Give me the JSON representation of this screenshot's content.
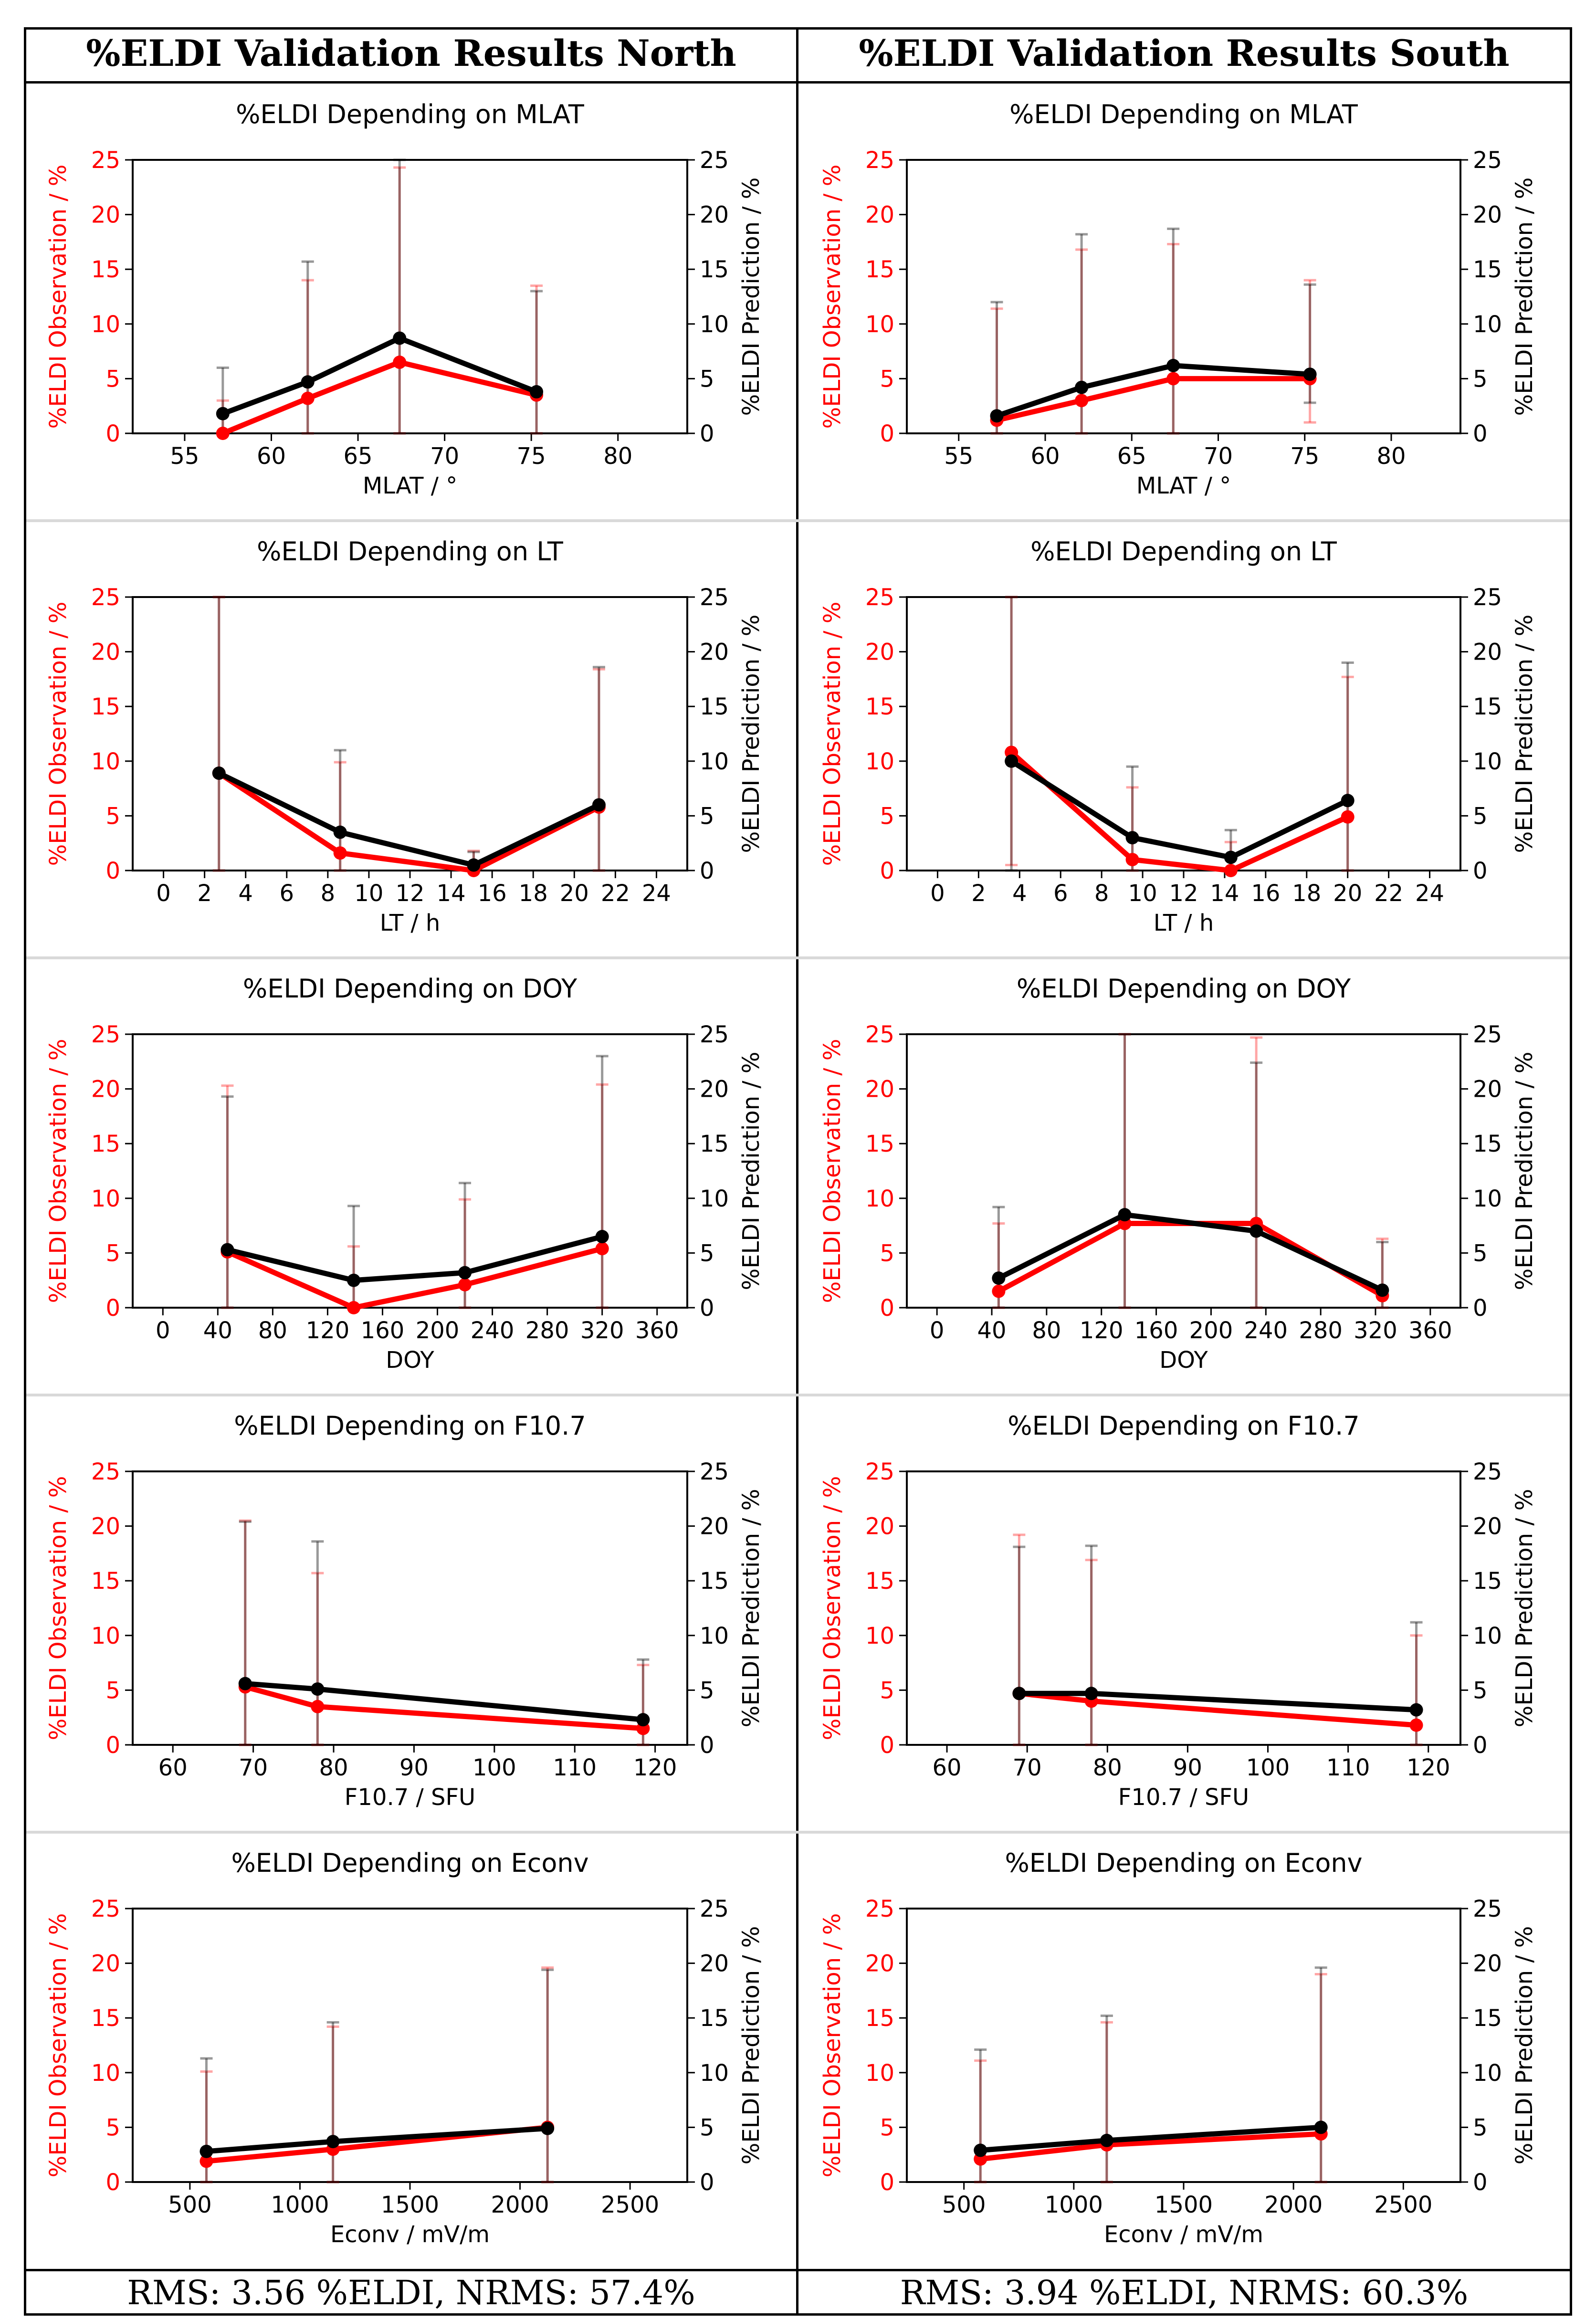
{
  "header": {
    "north_title": "%ELDI Validation Results North",
    "south_title": "%ELDI Validation Results South"
  },
  "footer": {
    "north_rms": "RMS: 3.56 %ELDI, NRMS: 57.4%",
    "south_rms": "RMS: 3.94 %ELDI, NRMS: 60.3%"
  },
  "colors": {
    "observation": "#ff0000",
    "prediction": "#000000",
    "axis": "#000000",
    "separator": "#d9d9d9"
  },
  "chart_data": [
    {
      "id": "north-mlat",
      "type": "line",
      "title": "%ELDI Depending on MLAT",
      "xlabel": "MLAT / °",
      "ylabel_left": "%ELDI Observation / %",
      "ylabel_right": "%ELDI Prediction / %",
      "xlim": [
        52,
        84
      ],
      "ylim": [
        0,
        25
      ],
      "xticks": [
        55,
        60,
        65,
        70,
        75,
        80
      ],
      "yticks": [
        0,
        5,
        10,
        15,
        20,
        25
      ],
      "x": [
        57.2,
        62.1,
        67.4,
        75.3
      ],
      "series": [
        {
          "name": "%ELDI Observation",
          "values": [
            0,
            3.2,
            6.5,
            3.5
          ],
          "err_low": [
            0,
            3.2,
            6.5,
            3.5
          ],
          "err_high": [
            3,
            10.8,
            17.8,
            10
          ]
        },
        {
          "name": "%ELDI Prediction",
          "values": [
            1.8,
            4.7,
            8.7,
            3.8
          ],
          "err_low": [
            1.8,
            4.7,
            8.7,
            3.8
          ],
          "err_high": [
            4.2,
            11,
            19.7,
            9.2
          ]
        }
      ]
    },
    {
      "id": "south-mlat",
      "type": "line",
      "title": "%ELDI Depending on MLAT",
      "xlabel": "MLAT / °",
      "ylabel_left": "%ELDI Observation / %",
      "ylabel_right": "%ELDI Prediction / %",
      "xlim": [
        52,
        84
      ],
      "ylim": [
        0,
        25
      ],
      "xticks": [
        55,
        60,
        65,
        70,
        75,
        80
      ],
      "yticks": [
        0,
        5,
        10,
        15,
        20,
        25
      ],
      "x": [
        57.2,
        62.1,
        67.4,
        75.3
      ],
      "series": [
        {
          "name": "%ELDI Observation",
          "values": [
            1.2,
            3,
            5,
            5
          ],
          "err_low": [
            1.2,
            3,
            5,
            4
          ],
          "err_high": [
            10.2,
            13.8,
            12.3,
            9
          ]
        },
        {
          "name": "%ELDI Prediction",
          "values": [
            1.6,
            4.2,
            6.2,
            5.4
          ],
          "err_low": [
            1.6,
            4.2,
            6.2,
            2.6
          ],
          "err_high": [
            10.4,
            14,
            12.5,
            8.2
          ]
        }
      ]
    },
    {
      "id": "north-lt",
      "type": "line",
      "title": "%ELDI Depending on LT",
      "xlabel": "LT / h",
      "ylabel_left": "%ELDI Observation / %",
      "ylabel_right": "%ELDI Prediction / %",
      "xlim": [
        -1.5,
        25.5
      ],
      "ylim": [
        0,
        25
      ],
      "xticks": [
        0,
        2,
        4,
        6,
        8,
        10,
        12,
        14,
        16,
        18,
        20,
        22,
        24
      ],
      "yticks": [
        0,
        5,
        10,
        15,
        20,
        25
      ],
      "x": [
        2.7,
        8.6,
        15.1,
        21.2
      ],
      "series": [
        {
          "name": "%ELDI Observation",
          "values": [
            8.9,
            1.6,
            0,
            5.8
          ],
          "err_low": [
            8.9,
            1.6,
            0,
            5.8
          ],
          "err_high": [
            19.7,
            8.3,
            1.8,
            12.6
          ]
        },
        {
          "name": "%ELDI Prediction",
          "values": [
            8.9,
            3.5,
            0.5,
            6
          ],
          "err_low": [
            8.9,
            3.5,
            0.5,
            6
          ],
          "err_high": [
            19.3,
            7.5,
            1.2,
            12.6
          ]
        }
      ]
    },
    {
      "id": "south-lt",
      "type": "line",
      "title": "%ELDI Depending on LT",
      "xlabel": "LT / h",
      "ylabel_left": "%ELDI Observation / %",
      "ylabel_right": "%ELDI Prediction / %",
      "xlim": [
        -1.5,
        25.5
      ],
      "ylim": [
        0,
        25
      ],
      "xticks": [
        0,
        2,
        4,
        6,
        8,
        10,
        12,
        14,
        16,
        18,
        20,
        22,
        24
      ],
      "yticks": [
        0,
        5,
        10,
        15,
        20,
        25
      ],
      "x": [
        3.6,
        9.5,
        14.3,
        20
      ],
      "series": [
        {
          "name": "%ELDI Observation",
          "values": [
            10.8,
            1,
            0,
            4.9
          ],
          "err_low": [
            10.3,
            1,
            0,
            4.9
          ],
          "err_high": [
            21,
            6.6,
            2.6,
            12.8
          ]
        },
        {
          "name": "%ELDI Prediction",
          "values": [
            10,
            3,
            1.2,
            6.4
          ],
          "err_low": [
            10,
            3,
            1.2,
            6.4
          ],
          "err_high": [
            20.8,
            6.5,
            2.5,
            12.6
          ]
        }
      ]
    },
    {
      "id": "north-doy",
      "type": "line",
      "title": "%ELDI Depending on DOY",
      "xlabel": "DOY",
      "ylabel_left": "%ELDI Observation / %",
      "ylabel_right": "%ELDI Prediction / %",
      "xlim": [
        -22,
        382
      ],
      "ylim": [
        0,
        25
      ],
      "xticks": [
        0,
        40,
        80,
        120,
        160,
        200,
        240,
        280,
        320,
        360
      ],
      "yticks": [
        0,
        5,
        10,
        15,
        20,
        25
      ],
      "x": [
        47,
        139,
        220,
        320
      ],
      "series": [
        {
          "name": "%ELDI Observation",
          "values": [
            5.1,
            0,
            2.1,
            5.4
          ],
          "err_low": [
            5.1,
            0,
            2.1,
            5.4
          ],
          "err_high": [
            15.2,
            5.6,
            7.8,
            15
          ]
        },
        {
          "name": "%ELDI Prediction",
          "values": [
            5.3,
            2.5,
            3.2,
            6.5
          ],
          "err_low": [
            5.3,
            2.5,
            3.2,
            6.5
          ],
          "err_high": [
            14,
            6.8,
            8.2,
            16.5
          ]
        }
      ]
    },
    {
      "id": "south-doy",
      "type": "line",
      "title": "%ELDI Depending on DOY",
      "xlabel": "DOY",
      "ylabel_left": "%ELDI Observation / %",
      "ylabel_right": "%ELDI Prediction / %",
      "xlim": [
        -22,
        382
      ],
      "ylim": [
        0,
        25
      ],
      "xticks": [
        0,
        40,
        80,
        120,
        160,
        200,
        240,
        280,
        320,
        360
      ],
      "yticks": [
        0,
        5,
        10,
        15,
        20,
        25
      ],
      "x": [
        45,
        137,
        233,
        325
      ],
      "series": [
        {
          "name": "%ELDI Observation",
          "values": [
            1.5,
            7.7,
            7.7,
            1.1
          ],
          "err_low": [
            1.5,
            7.7,
            7.7,
            1.1
          ],
          "err_high": [
            6.2,
            18.5,
            17,
            5.2
          ]
        },
        {
          "name": "%ELDI Prediction",
          "values": [
            2.7,
            8.5,
            7,
            1.6
          ],
          "err_low": [
            2.7,
            8.5,
            7,
            1.6
          ],
          "err_high": [
            6.5,
            18.7,
            15.4,
            4.4
          ]
        }
      ]
    },
    {
      "id": "north-f107",
      "type": "line",
      "title": "%ELDI Depending on F10.7",
      "xlabel": "F10.7 / SFU",
      "ylabel_left": "%ELDI Observation / %",
      "ylabel_right": "%ELDI Prediction / %",
      "xlim": [
        55,
        124
      ],
      "ylim": [
        0,
        25
      ],
      "xticks": [
        60,
        70,
        80,
        90,
        100,
        110,
        120
      ],
      "yticks": [
        0,
        5,
        10,
        15,
        20,
        25
      ],
      "x": [
        69,
        78,
        118.5
      ],
      "series": [
        {
          "name": "%ELDI Observation",
          "values": [
            5.3,
            3.5,
            1.5
          ],
          "err_low": [
            5.3,
            3.5,
            1.5
          ],
          "err_high": [
            15.2,
            12.2,
            5.8
          ]
        },
        {
          "name": "%ELDI Prediction",
          "values": [
            5.6,
            5.1,
            2.3
          ],
          "err_low": [
            5.6,
            5.1,
            2.3
          ],
          "err_high": [
            14.8,
            13.5,
            5.5
          ]
        }
      ]
    },
    {
      "id": "south-f107",
      "type": "line",
      "title": "%ELDI Depending on F10.7",
      "xlabel": "F10.7 / SFU",
      "ylabel_left": "%ELDI Observation / %",
      "ylabel_right": "%ELDI Prediction / %",
      "xlim": [
        55,
        124
      ],
      "ylim": [
        0,
        25
      ],
      "xticks": [
        60,
        70,
        80,
        90,
        100,
        110,
        120
      ],
      "yticks": [
        0,
        5,
        10,
        15,
        20,
        25
      ],
      "x": [
        69,
        78,
        118.5
      ],
      "series": [
        {
          "name": "%ELDI Observation",
          "values": [
            4.7,
            4,
            1.8
          ],
          "err_low": [
            4.7,
            4,
            1.8
          ],
          "err_high": [
            14.5,
            12.9,
            8.2
          ]
        },
        {
          "name": "%ELDI Prediction",
          "values": [
            4.7,
            4.7,
            3.2
          ],
          "err_low": [
            4.7,
            4.7,
            3.2
          ],
          "err_high": [
            13.4,
            13.5,
            8
          ]
        }
      ]
    },
    {
      "id": "north-econv",
      "type": "line",
      "title": "%ELDI Depending on Econv",
      "xlabel": "Econv / mV/m",
      "ylabel_left": "%ELDI Observation / %",
      "ylabel_right": "%ELDI Prediction / %",
      "xlim": [
        240,
        2760
      ],
      "ylim": [
        0,
        25
      ],
      "xticks": [
        500,
        1000,
        1500,
        2000,
        2500
      ],
      "yticks": [
        0,
        5,
        10,
        15,
        20,
        25
      ],
      "x": [
        575,
        1150,
        2125
      ],
      "series": [
        {
          "name": "%ELDI Observation",
          "values": [
            1.9,
            3,
            5
          ],
          "err_low": [
            1.9,
            3,
            5
          ],
          "err_high": [
            8.2,
            11.2,
            14.6
          ]
        },
        {
          "name": "%ELDI Prediction",
          "values": [
            2.8,
            3.7,
            4.9
          ],
          "err_low": [
            2.8,
            3.7,
            4.9
          ],
          "err_high": [
            8.5,
            10.9,
            14.5
          ]
        }
      ]
    },
    {
      "id": "south-econv",
      "type": "line",
      "title": "%ELDI Depending on Econv",
      "xlabel": "Econv / mV/m",
      "ylabel_left": "%ELDI Observation / %",
      "ylabel_right": "%ELDI Prediction / %",
      "xlim": [
        240,
        2760
      ],
      "ylim": [
        0,
        25
      ],
      "xticks": [
        500,
        1000,
        1500,
        2000,
        2500
      ],
      "yticks": [
        0,
        5,
        10,
        15,
        20,
        25
      ],
      "x": [
        575,
        1150,
        2125
      ],
      "series": [
        {
          "name": "%ELDI Observation",
          "values": [
            2.1,
            3.4,
            4.4
          ],
          "err_low": [
            2.1,
            3.4,
            4.4
          ],
          "err_high": [
            9,
            11.2,
            14.6
          ]
        },
        {
          "name": "%ELDI Prediction",
          "values": [
            2.9,
            3.8,
            5
          ],
          "err_low": [
            2.9,
            3.8,
            5
          ],
          "err_high": [
            9.2,
            11.4,
            14.6
          ]
        }
      ]
    }
  ]
}
